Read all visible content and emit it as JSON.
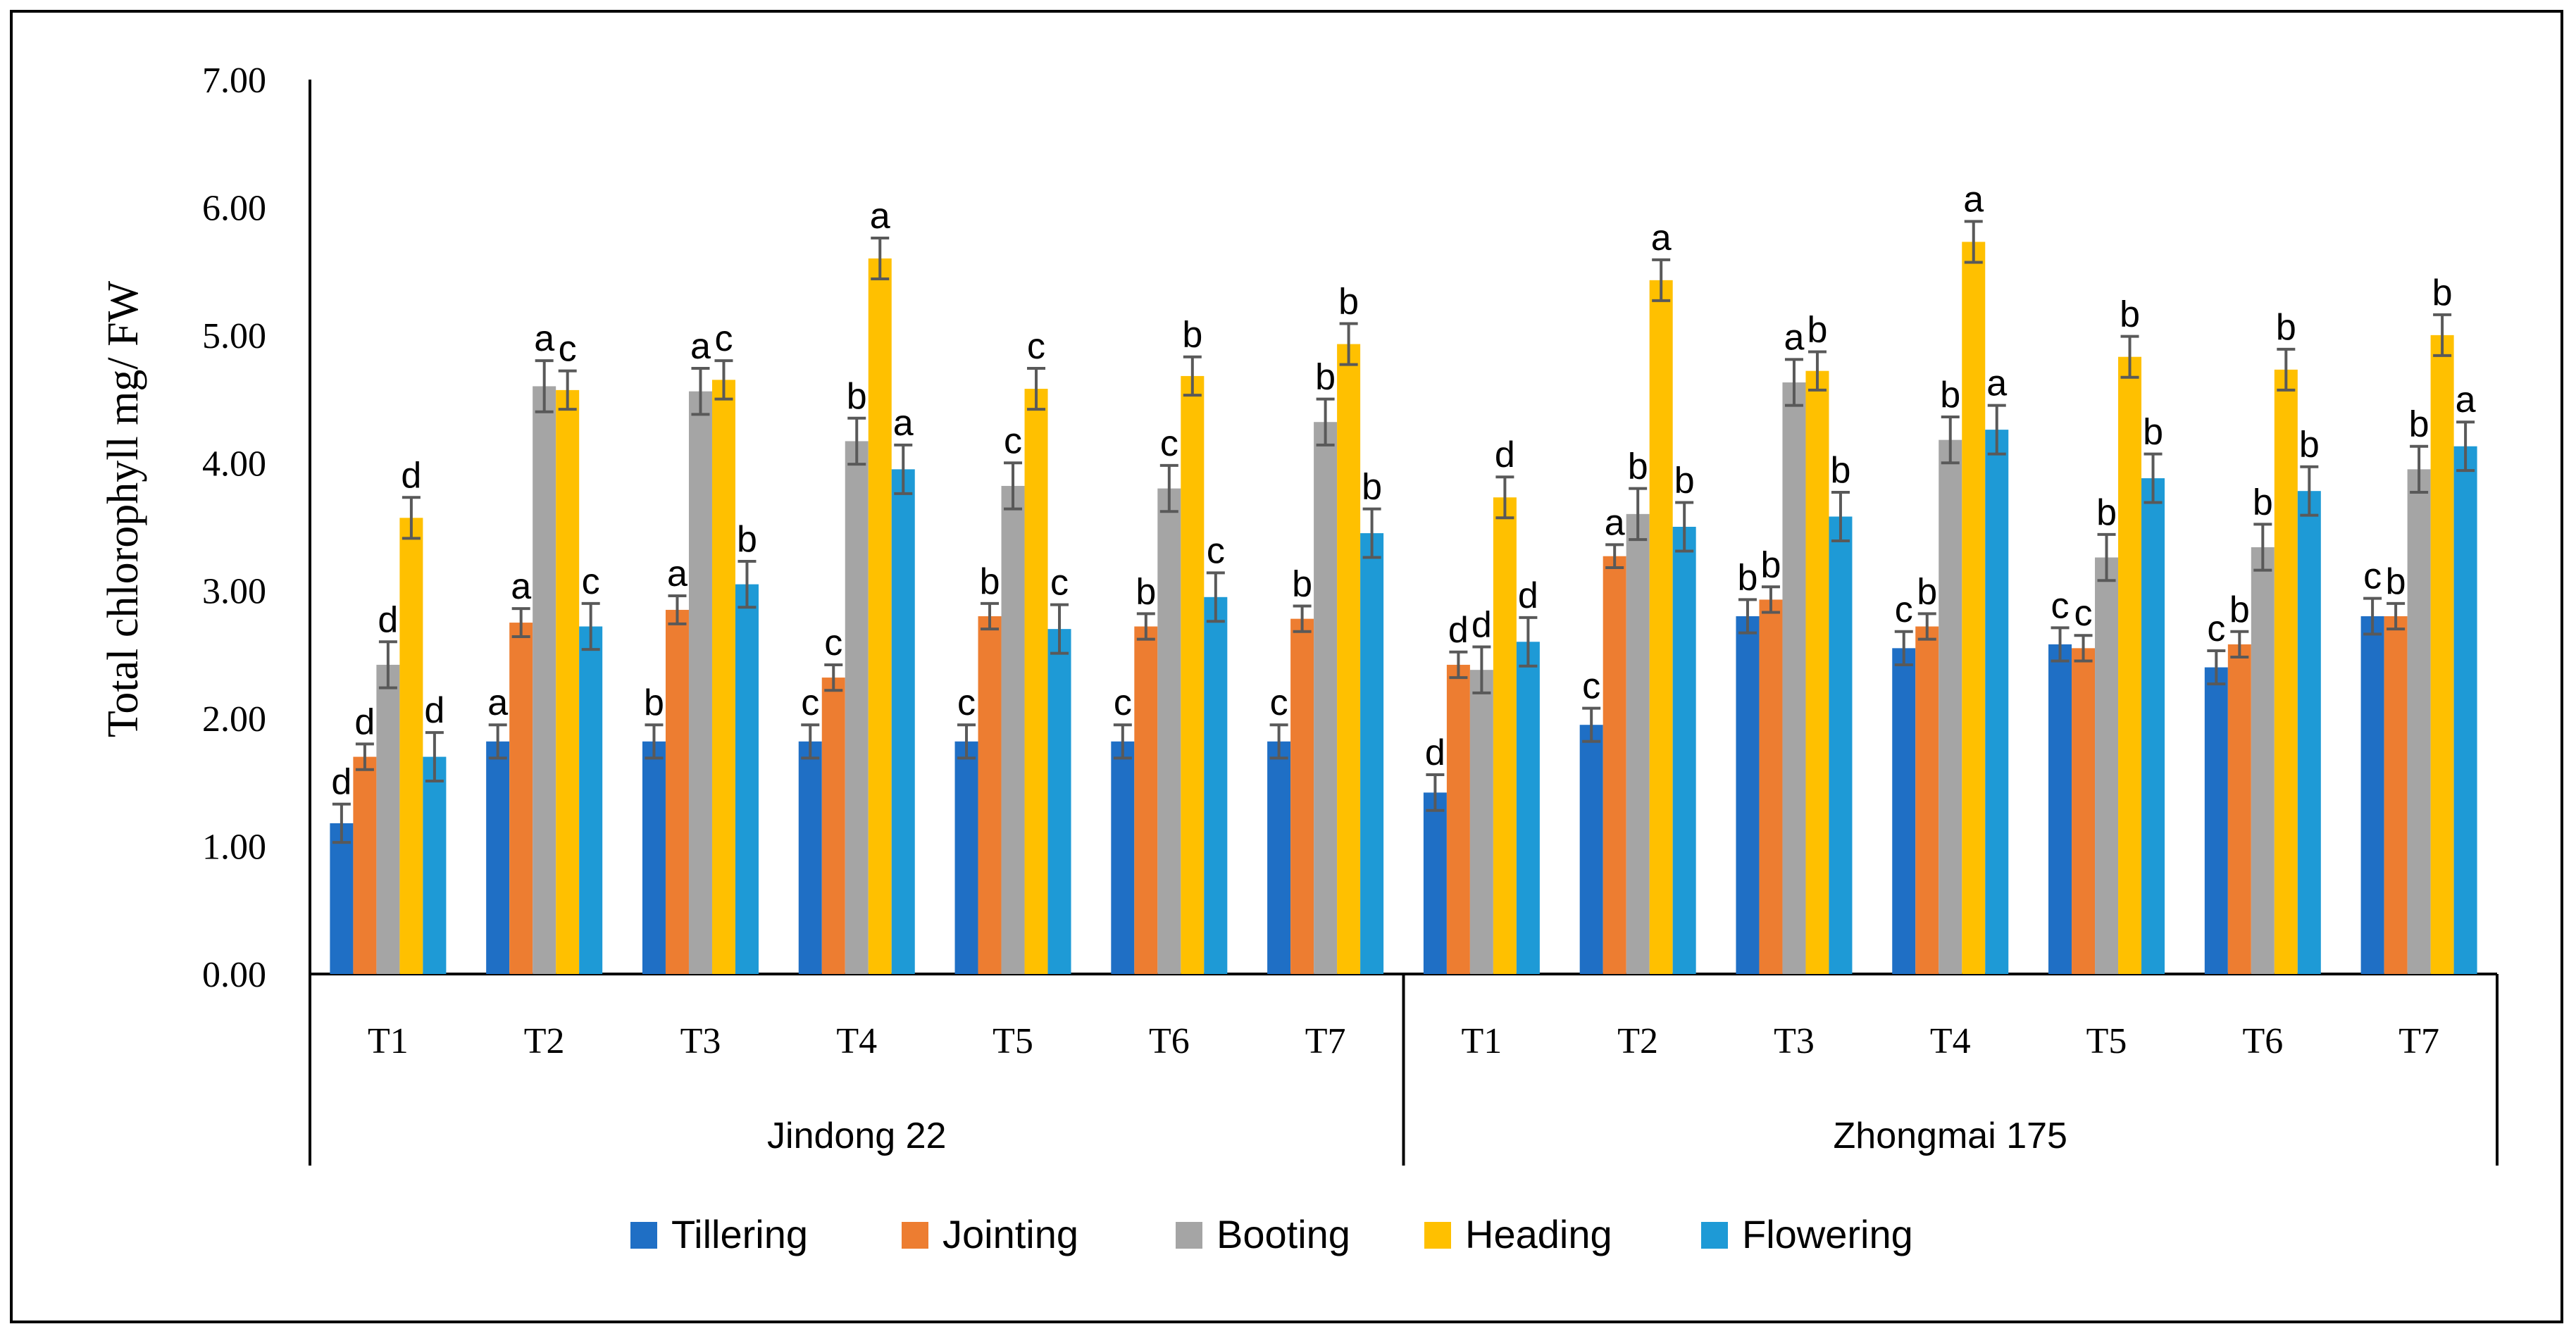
{
  "chart_data": {
    "type": "bar",
    "ylabel": "Total chlorophyll mg/ FW",
    "ylim": [
      0,
      7
    ],
    "yticks": [
      "0.00",
      "1.00",
      "2.00",
      "3.00",
      "4.00",
      "5.00",
      "6.00",
      "7.00"
    ],
    "groups": [
      {
        "name": "Jindong 22",
        "categories": [
          "T1",
          "T2",
          "T3",
          "T4",
          "T5",
          "T6",
          "T7"
        ]
      },
      {
        "name": "Zhongmai 175",
        "categories": [
          "T1",
          "T2",
          "T3",
          "T4",
          "T5",
          "T6",
          "T7"
        ]
      }
    ],
    "series": [
      {
        "name": "Tillering",
        "color": "#1F6FC5",
        "values": [
          1.18,
          1.82,
          1.82,
          1.82,
          1.82,
          1.82,
          1.82,
          1.42,
          1.95,
          2.8,
          2.55,
          2.58,
          2.4,
          2.8
        ],
        "errors": [
          0.15,
          0.13,
          0.13,
          0.13,
          0.13,
          0.13,
          0.13,
          0.14,
          0.13,
          0.13,
          0.13,
          0.13,
          0.13,
          0.14
        ],
        "letters": [
          "d",
          "a",
          "b",
          "c",
          "c",
          "c",
          "c",
          "d",
          "c",
          "b",
          "c",
          "c",
          "c",
          "c"
        ]
      },
      {
        "name": "Jointing",
        "color": "#ED7D31",
        "values": [
          1.7,
          2.75,
          2.85,
          2.32,
          2.8,
          2.72,
          2.78,
          2.42,
          3.27,
          2.93,
          2.72,
          2.55,
          2.58,
          2.8
        ],
        "errors": [
          0.1,
          0.11,
          0.11,
          0.1,
          0.1,
          0.1,
          0.1,
          0.1,
          0.09,
          0.1,
          0.1,
          0.1,
          0.1,
          0.1
        ],
        "letters": [
          "d",
          "a",
          "a",
          "c",
          "b",
          "b",
          "b",
          "d",
          "a",
          "b",
          "b",
          "c",
          "b",
          "b"
        ]
      },
      {
        "name": "Booting",
        "color": "#A5A5A5",
        "values": [
          2.42,
          4.6,
          4.56,
          4.17,
          3.82,
          3.8,
          4.32,
          2.38,
          3.6,
          4.63,
          4.18,
          3.26,
          3.34,
          3.95
        ],
        "errors": [
          0.18,
          0.2,
          0.18,
          0.18,
          0.18,
          0.18,
          0.18,
          0.18,
          0.2,
          0.18,
          0.18,
          0.18,
          0.18,
          0.18
        ],
        "letters": [
          "d",
          "a",
          "a",
          "b",
          "c",
          "c",
          "b",
          "d",
          "b",
          "a",
          "b",
          "b",
          "b",
          "b"
        ]
      },
      {
        "name": "Heading",
        "color": "#FFC000",
        "values": [
          3.57,
          4.57,
          4.65,
          5.6,
          4.58,
          4.68,
          4.93,
          3.73,
          5.43,
          4.72,
          5.73,
          4.83,
          4.73,
          5.0
        ],
        "errors": [
          0.16,
          0.15,
          0.15,
          0.16,
          0.16,
          0.15,
          0.16,
          0.16,
          0.16,
          0.15,
          0.16,
          0.16,
          0.16,
          0.16
        ],
        "letters": [
          "d",
          "c",
          "c",
          "a",
          "c",
          "b",
          "b",
          "d",
          "a",
          "b",
          "a",
          "b",
          "b",
          "b"
        ]
      },
      {
        "name": "Flowering",
        "color": "#1E9AD6",
        "values": [
          1.7,
          2.72,
          3.05,
          3.95,
          2.7,
          2.95,
          3.45,
          2.6,
          3.5,
          3.58,
          4.26,
          3.88,
          3.78,
          4.13
        ],
        "errors": [
          0.19,
          0.18,
          0.18,
          0.19,
          0.19,
          0.19,
          0.19,
          0.19,
          0.19,
          0.19,
          0.19,
          0.19,
          0.19,
          0.19
        ],
        "letters": [
          "d",
          "c",
          "b",
          "a",
          "c",
          "c",
          "b",
          "d",
          "b",
          "b",
          "a",
          "b",
          "b",
          "a"
        ]
      }
    ],
    "legend_position": "bottom",
    "grid": false
  }
}
